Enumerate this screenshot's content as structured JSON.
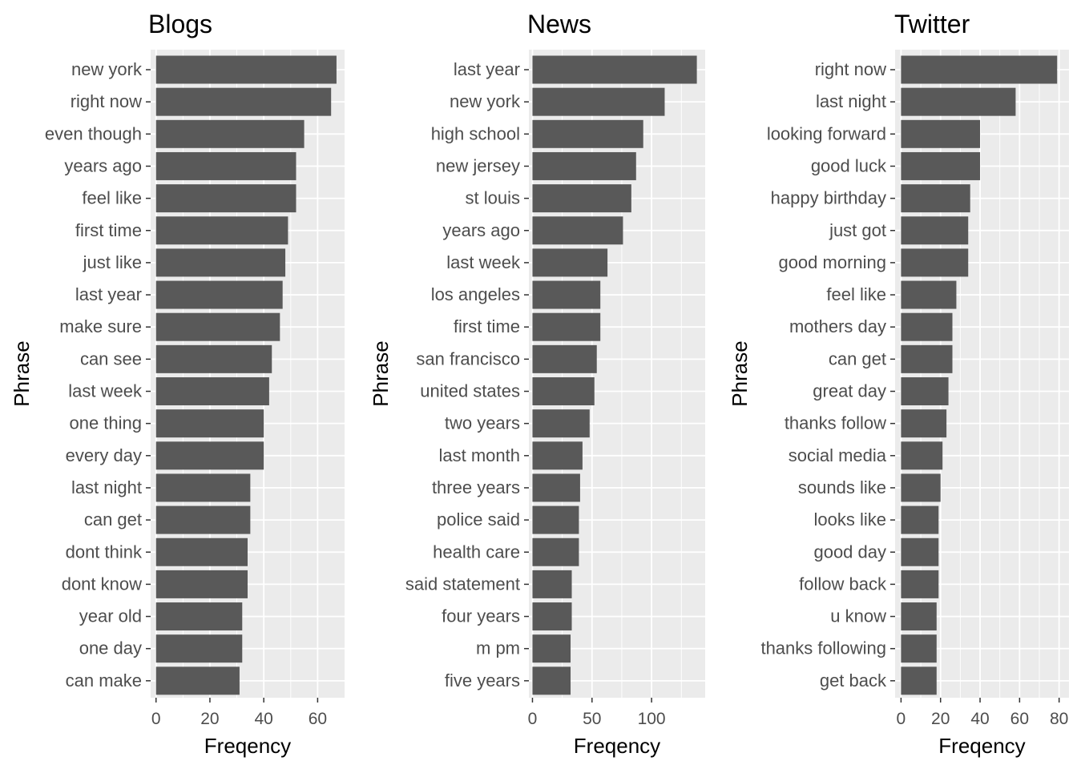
{
  "chart_data": [
    {
      "type": "bar",
      "title": "Blogs",
      "xlabel": "Freqency",
      "ylabel": "Phrase",
      "orientation": "horizontal",
      "grid": true,
      "xlim": [
        -2,
        70
      ],
      "xticks": [
        0,
        20,
        40,
        60
      ],
      "categories": [
        "new york",
        "right now",
        "even though",
        "years ago",
        "feel like",
        "first time",
        "just like",
        "last year",
        "make sure",
        "can see",
        "last week",
        "one thing",
        "every day",
        "last night",
        "can get",
        "dont think",
        "dont know",
        "year old",
        "one day",
        "can make"
      ],
      "values": [
        67,
        65,
        55,
        52,
        52,
        49,
        48,
        47,
        46,
        43,
        42,
        40,
        40,
        35,
        35,
        34,
        34,
        32,
        32,
        31
      ],
      "bar_color": "#595959",
      "panel_color": "#ebebeb"
    },
    {
      "type": "bar",
      "title": "News",
      "xlabel": "Freqency",
      "ylabel": "Phrase",
      "orientation": "horizontal",
      "grid": true,
      "xlim": [
        -3,
        145
      ],
      "xticks": [
        0,
        50,
        100
      ],
      "categories": [
        "last year",
        "new york",
        "high school",
        "new jersey",
        "st louis",
        "years ago",
        "last week",
        "los angeles",
        "first time",
        "san francisco",
        "united states",
        "two years",
        "last month",
        "three years",
        "police said",
        "health care",
        "said statement",
        "four years",
        "m pm",
        "five years"
      ],
      "values": [
        138,
        111,
        93,
        87,
        83,
        76,
        63,
        57,
        57,
        54,
        52,
        48,
        42,
        40,
        39,
        39,
        33,
        33,
        32,
        32
      ],
      "bar_color": "#595959",
      "panel_color": "#ebebeb"
    },
    {
      "type": "bar",
      "title": "Twitter",
      "xlabel": "Freqency",
      "ylabel": "Phrase",
      "orientation": "horizontal",
      "grid": true,
      "xlim": [
        -3,
        85
      ],
      "xticks": [
        0,
        20,
        40,
        60,
        80
      ],
      "categories": [
        "right now",
        "last night",
        "looking forward",
        "good luck",
        "happy birthday",
        "just got",
        "good morning",
        "feel like",
        "mothers day",
        "can get",
        "great day",
        "thanks follow",
        "social media",
        "sounds like",
        "looks like",
        "good day",
        "follow back",
        "u know",
        "thanks following",
        "get back"
      ],
      "values": [
        79,
        58,
        40,
        40,
        35,
        34,
        34,
        28,
        26,
        26,
        24,
        23,
        21,
        20,
        19,
        19,
        19,
        18,
        18,
        18
      ],
      "bar_color": "#595959",
      "panel_color": "#ebebeb"
    }
  ]
}
